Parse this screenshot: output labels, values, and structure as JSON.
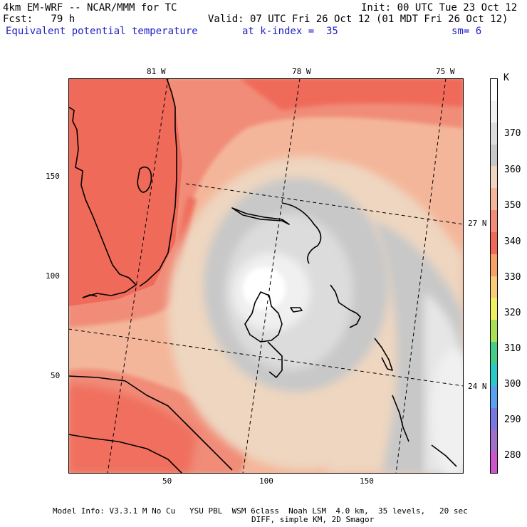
{
  "header": {
    "model": "4km EM-WRF -- NCAR/MMM for TC",
    "init": "Init: 00 UTC Tue 23 Oct 12",
    "fcst": "Fcst:   79 h",
    "valid": "Valid: 07 UTC Fri 26 Oct 12 (01 MDT Fri 26 Oct 12)",
    "field": "Equivalent potential temperature",
    "kindex": "at k-index =  35",
    "sm": "sm= 6"
  },
  "map": {
    "top_lon_labels": [
      "81 W",
      "78 W",
      "75 W"
    ],
    "right_lat_labels": [
      "27 N",
      "24 N"
    ],
    "y_ticks": [
      "150",
      "100",
      "50"
    ],
    "x_ticks": [
      "50",
      "100",
      "150"
    ],
    "features": [
      "Florida peninsula",
      "Lake Okeechobee",
      "Grand Bahama",
      "Abaco",
      "Andros",
      "Eleuthera",
      "Exuma",
      "Cuba coast"
    ]
  },
  "colorbar": {
    "unit": "K",
    "levels": [
      "370",
      "360",
      "350",
      "340",
      "330",
      "320",
      "310",
      "300",
      "290",
      "280"
    ],
    "colors": {
      "lt280": "#cc55cc",
      "c280": "#a070c8",
      "c290": "#7878e0",
      "c300": "#5aa0f0",
      "c310": "#2ac8c8",
      "c315": "#44cc88",
      "c320": "#aae055",
      "c325": "#f0f064",
      "c330": "#f8cc78",
      "c335": "#f8a268",
      "c340": "#f06a5a",
      "c345": "#f08c78",
      "c350": "#f4b69a",
      "c355": "#eed6c0",
      "c360": "#c8c8c8",
      "c365": "#dcdcdc",
      "c370": "#f0f0f0",
      "gt375": "#ffffff"
    }
  },
  "footer": {
    "line1": "Model Info: V3.3.1 M No Cu   YSU PBL  WSM 6class  Noah LSM  4.0 km,  35 levels,   20 sec",
    "line2": "DIFF, simple KM, 2D Smagor"
  }
}
